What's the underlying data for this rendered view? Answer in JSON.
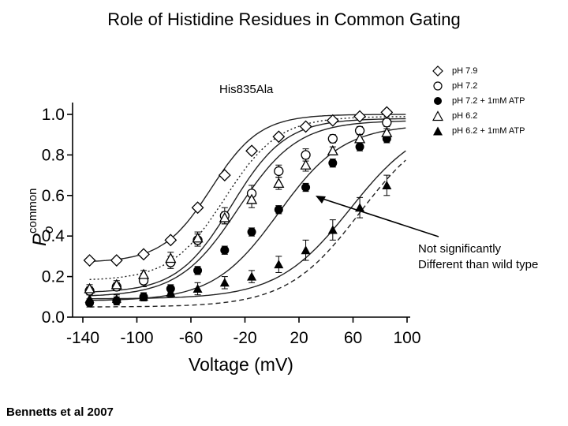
{
  "title": "Role of Histidine Residues in Common Gating",
  "citation": "Bennetts et al 2007",
  "annotation": {
    "line1": "Not significantly",
    "line2": "Different than wild type"
  },
  "chart_data": {
    "type": "scatter",
    "inset_label": "His835Ala",
    "xlabel": "Voltage (mV)",
    "ylabel_main": "P",
    "ylabel_sub": "o",
    "ylabel_sup": "common",
    "xlim": [
      -140,
      100
    ],
    "ylim": [
      0.0,
      1.0
    ],
    "xticks": [
      -140,
      -100,
      -60,
      -20,
      20,
      60,
      100
    ],
    "yticks": [
      0.0,
      0.2,
      0.4,
      0.6,
      0.8,
      1.0
    ],
    "xtick_labels": [
      "-140",
      "-100",
      "-60",
      "-20",
      "20",
      "60",
      "100"
    ],
    "ytick_labels": [
      "0.0",
      "0.2",
      "0.4",
      "0.6",
      "0.8",
      "1.0"
    ],
    "legend_position": "top-right",
    "series": [
      {
        "name": "pH 7.9",
        "marker": "diamond-open",
        "x": [
          -135,
          -115,
          -95,
          -75,
          -55,
          -35,
          -15,
          5,
          25,
          45,
          65,
          85
        ],
        "y": [
          0.28,
          0.28,
          0.31,
          0.38,
          0.54,
          0.7,
          0.82,
          0.89,
          0.94,
          0.97,
          0.99,
          1.01
        ],
        "err": [
          0,
          0,
          0,
          0,
          0,
          0,
          0,
          0,
          0,
          0,
          0,
          0
        ],
        "fit": {
          "type": "boltzmann",
          "min": 0.27,
          "max": 1.0,
          "v_half": -45,
          "k": 18,
          "style": "solid"
        }
      },
      {
        "name": "pH 7.2",
        "marker": "circle-open",
        "x": [
          -135,
          -115,
          -95,
          -75,
          -55,
          -35,
          -15,
          5,
          25,
          45,
          65,
          85
        ],
        "y": [
          0.13,
          0.15,
          0.18,
          0.27,
          0.38,
          0.5,
          0.61,
          0.72,
          0.8,
          0.88,
          0.92,
          0.96
        ],
        "err": [
          0.02,
          0.02,
          0.03,
          0.03,
          0.03,
          0.04,
          0.04,
          0.03,
          0.03,
          0.02,
          0.02,
          0.02
        ],
        "fit": {
          "type": "boltzmann",
          "min": 0.12,
          "max": 0.98,
          "v_half": -30,
          "k": 20,
          "style": "solid"
        }
      },
      {
        "name": "pH 7.2 + 1mM ATP",
        "marker": "circle-filled",
        "x": [
          -135,
          -115,
          -95,
          -75,
          -55,
          -35,
          -15,
          5,
          25,
          45,
          65,
          85
        ],
        "y": [
          0.07,
          0.08,
          0.1,
          0.14,
          0.23,
          0.33,
          0.42,
          0.53,
          0.64,
          0.76,
          0.84,
          0.88
        ],
        "err": [
          0.02,
          0.02,
          0.02,
          0.02,
          0.02,
          0.02,
          0.02,
          0.02,
          0.02,
          0.02,
          0.02,
          0.02
        ],
        "fit": {
          "type": "boltzmann",
          "min": 0.08,
          "max": 0.95,
          "v_half": 5,
          "k": 24,
          "style": "solid"
        }
      },
      {
        "name": "pH 6.2",
        "marker": "triangle-open",
        "x": [
          -135,
          -115,
          -95,
          -75,
          -55,
          -35,
          -15,
          5,
          25,
          45,
          65,
          85
        ],
        "y": [
          0.14,
          0.16,
          0.21,
          0.29,
          0.39,
          0.49,
          0.58,
          0.66,
          0.75,
          0.82,
          0.88,
          0.91
        ],
        "err": [
          0.02,
          0.02,
          0.02,
          0.03,
          0.03,
          0.03,
          0.04,
          0.03,
          0.03,
          0.02,
          0.02,
          0.02
        ],
        "fit": {
          "type": "boltzmann",
          "min": 0.1,
          "max": 0.97,
          "v_half": -25,
          "k": 22,
          "style": "solid"
        }
      },
      {
        "name": "pH 6.2 + 1mM ATP",
        "marker": "triangle-filled",
        "x": [
          -135,
          -115,
          -95,
          -75,
          -55,
          -35,
          -15,
          5,
          25,
          45,
          65,
          85
        ],
        "y": [
          0.09,
          0.09,
          0.1,
          0.12,
          0.14,
          0.17,
          0.2,
          0.26,
          0.33,
          0.43,
          0.54,
          0.65
        ],
        "err": [
          0.02,
          0.02,
          0.02,
          0.02,
          0.03,
          0.03,
          0.03,
          0.04,
          0.05,
          0.05,
          0.05,
          0.05
        ],
        "fit": {
          "type": "boltzmann",
          "min": 0.09,
          "max": 0.98,
          "v_half": 58,
          "k": 27,
          "style": "solid"
        }
      }
    ],
    "reference_curves": [
      {
        "type": "boltzmann",
        "min": 0.18,
        "max": 0.99,
        "v_half": -35,
        "k": 20,
        "style": "dotted"
      },
      {
        "type": "boltzmann",
        "min": 0.05,
        "max": 0.98,
        "v_half": 65,
        "k": 27,
        "style": "dashed"
      }
    ]
  }
}
